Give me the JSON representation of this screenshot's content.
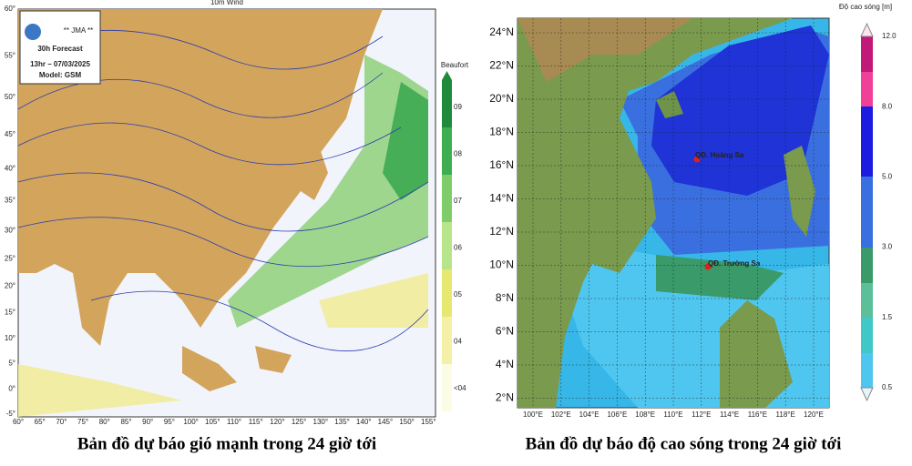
{
  "left_map": {
    "title": "10m Wind",
    "agency": "** JMA **",
    "forecast": "30h Forecast",
    "time": "13hr – 07/03/2025",
    "model": "Model: GSM",
    "legend_title": "Beaufort",
    "legend_labels": [
      "09",
      "08",
      "07",
      "06",
      "05",
      "04",
      "<04"
    ],
    "lat_labels": [
      "60°",
      "55°",
      "50°",
      "45°",
      "40°",
      "35°",
      "30°",
      "25°",
      "20°",
      "15°",
      "10°",
      "5°",
      "0°",
      "-5°"
    ],
    "lon_labels": [
      "60°",
      "65°",
      "70°",
      "75°",
      "80°",
      "85°",
      "90°",
      "95°",
      "100°",
      "105°",
      "110°",
      "115°",
      "120°",
      "125°",
      "130°",
      "135°",
      "140°",
      "145°",
      "150°",
      "155°"
    ],
    "caption": "Bản đồ dự báo gió mạnh trong 24 giờ tới"
  },
  "right_map": {
    "legend_title": "Độ cao sóng [m]",
    "legend_labels": [
      "12.0",
      "8.0",
      "5.0",
      "3.0",
      "1.5",
      "0.5"
    ],
    "lat_labels": [
      "24°N",
      "22°N",
      "20°N",
      "18°N",
      "16°N",
      "14°N",
      "12°N",
      "10°N",
      "8°N",
      "6°N",
      "4°N",
      "2°N"
    ],
    "lon_labels": [
      "100°E",
      "102°E",
      "104°E",
      "106°E",
      "108°E",
      "110°E",
      "112°E",
      "114°E",
      "116°E",
      "118°E",
      "120°E"
    ],
    "places": [
      "QĐ. Hoàng Sa",
      "QĐ. Trường Sa"
    ],
    "caption": "Bản đồ dự báo độ cao sóng trong 24 giờ tới"
  }
}
